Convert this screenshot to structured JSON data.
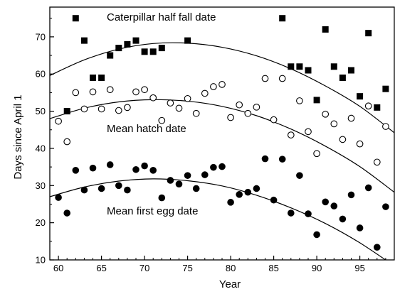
{
  "chart_data": {
    "type": "scatter",
    "title": "",
    "xlabel": "Year",
    "ylabel": "Days since April 1",
    "xlim": [
      59,
      99
    ],
    "ylim": [
      10,
      78
    ],
    "xticks": [
      60,
      65,
      70,
      75,
      80,
      85,
      90,
      95
    ],
    "yticks": [
      10,
      20,
      30,
      40,
      50,
      60,
      70
    ],
    "grid": false,
    "annotations": [
      {
        "series": 0,
        "text": "Caterpillar half fall date"
      },
      {
        "series": 1,
        "text": "Mean hatch date"
      },
      {
        "series": 2,
        "text": "Mean first egg date"
      }
    ],
    "series": [
      {
        "marker": "filled-square",
        "color": "#000000",
        "points": [
          [
            61,
            50
          ],
          [
            62,
            75
          ],
          [
            63,
            69
          ],
          [
            64,
            59
          ],
          [
            65,
            59
          ],
          [
            66,
            65
          ],
          [
            67,
            67
          ],
          [
            68,
            68
          ],
          [
            69,
            69
          ],
          [
            70,
            66
          ],
          [
            71,
            66
          ],
          [
            72,
            67
          ],
          [
            75,
            69
          ],
          [
            86,
            75
          ],
          [
            87,
            62
          ],
          [
            88,
            62
          ],
          [
            89,
            61
          ],
          [
            90,
            53
          ],
          [
            91,
            72
          ],
          [
            92,
            62
          ],
          [
            93,
            59
          ],
          [
            94,
            61
          ],
          [
            95,
            54
          ],
          [
            96,
            71
          ],
          [
            97,
            51
          ],
          [
            98,
            56
          ]
        ],
        "trend": [
          [
            59,
            59.6
          ],
          [
            63,
            63.8
          ],
          [
            67,
            66.7
          ],
          [
            71,
            68.2
          ],
          [
            75,
            68.3
          ],
          [
            79,
            67.2
          ],
          [
            83,
            64.9
          ],
          [
            87,
            61.4
          ],
          [
            91,
            56.8
          ],
          [
            95,
            51.3
          ],
          [
            99,
            44.2
          ]
        ]
      },
      {
        "marker": "open-circle",
        "color": "#000000",
        "points": [
          [
            60,
            47.3
          ],
          [
            61,
            41.8
          ],
          [
            62,
            55
          ],
          [
            63,
            50.6
          ],
          [
            64,
            55.2
          ],
          [
            65,
            50.6
          ],
          [
            66,
            55.8
          ],
          [
            67,
            50.2
          ],
          [
            68,
            51
          ],
          [
            69,
            55.2
          ],
          [
            70,
            55.8
          ],
          [
            71,
            53.6
          ],
          [
            72,
            47.5
          ],
          [
            73,
            52.2
          ],
          [
            74,
            50.8
          ],
          [
            75,
            53.4
          ],
          [
            76,
            49.4
          ],
          [
            77,
            54.8
          ],
          [
            78,
            56.6
          ],
          [
            79,
            57.2
          ],
          [
            80,
            48.3
          ],
          [
            81,
            51.7
          ],
          [
            82,
            49.4
          ],
          [
            83,
            51.1
          ],
          [
            84,
            58.8
          ],
          [
            85,
            47.7
          ],
          [
            86,
            58.8
          ],
          [
            87,
            43.6
          ],
          [
            88,
            52.8
          ],
          [
            89,
            44.5
          ],
          [
            90,
            38.6
          ],
          [
            91,
            49.2
          ],
          [
            92,
            46.6
          ],
          [
            93,
            42.4
          ],
          [
            94,
            48.1
          ],
          [
            95,
            41.2
          ],
          [
            96,
            51.4
          ],
          [
            97,
            36.3
          ],
          [
            98,
            45.9
          ]
        ],
        "trend": [
          [
            59,
            48
          ],
          [
            63,
            50.8
          ],
          [
            67,
            52.5
          ],
          [
            71,
            53.1
          ],
          [
            75,
            52.7
          ],
          [
            79,
            51.3
          ],
          [
            83,
            48.8
          ],
          [
            87,
            45.2
          ],
          [
            91,
            40.6
          ],
          [
            95,
            35.1
          ],
          [
            99,
            28.2
          ]
        ]
      },
      {
        "marker": "filled-circle",
        "color": "#000000",
        "points": [
          [
            60,
            26.8
          ],
          [
            61,
            22.6
          ],
          [
            62,
            34.1
          ],
          [
            63,
            28.8
          ],
          [
            64,
            34.7
          ],
          [
            65,
            29.2
          ],
          [
            66,
            35.6
          ],
          [
            67,
            30
          ],
          [
            68,
            28.8
          ],
          [
            69,
            34.3
          ],
          [
            70,
            35.3
          ],
          [
            71,
            34.1
          ],
          [
            72,
            26.7
          ],
          [
            73,
            31.4
          ],
          [
            74,
            30.4
          ],
          [
            75,
            32.7
          ],
          [
            76,
            29.2
          ],
          [
            77,
            32.9
          ],
          [
            78,
            34.9
          ],
          [
            79,
            35.1
          ],
          [
            80,
            25.5
          ],
          [
            81,
            27.6
          ],
          [
            82,
            28.2
          ],
          [
            83,
            29.2
          ],
          [
            84,
            37.2
          ],
          [
            85,
            26.1
          ],
          [
            86,
            37.1
          ],
          [
            87,
            22.6
          ],
          [
            88,
            32.7
          ],
          [
            89,
            22.4
          ],
          [
            90,
            16.8
          ],
          [
            91,
            25.6
          ],
          [
            92,
            24.5
          ],
          [
            93,
            21
          ],
          [
            94,
            27.5
          ],
          [
            95,
            18.6
          ],
          [
            96,
            29.4
          ],
          [
            97,
            13.4
          ],
          [
            98,
            24.3
          ]
        ],
        "trend": [
          [
            59,
            27
          ],
          [
            63,
            29.6
          ],
          [
            67,
            31.2
          ],
          [
            71,
            31.8
          ],
          [
            75,
            31.3
          ],
          [
            79,
            29.9
          ],
          [
            83,
            27.4
          ],
          [
            87,
            24
          ],
          [
            91,
            19.8
          ],
          [
            95,
            14.6
          ],
          [
            99,
            8.4
          ]
        ]
      }
    ]
  }
}
